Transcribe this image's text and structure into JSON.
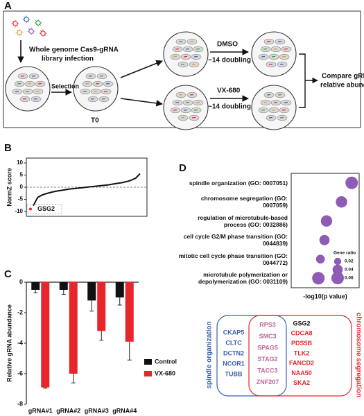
{
  "panel_labels": [
    "A",
    "B",
    "C",
    "D"
  ],
  "schematic": {
    "infection": [
      "Whole genome Cas9-gRNA",
      "library infection"
    ],
    "selection": "Selection",
    "t0": "T0",
    "treatments": [
      {
        "name": "DMSO",
        "duration": "~14 doubling"
      },
      {
        "name": "VX-680",
        "duration": "~14 doubling"
      }
    ],
    "compare": [
      "Compare gRNA",
      "relative abundance"
    ]
  },
  "chart_data": [
    {
      "type": "line",
      "y_label": "NormZ score",
      "values": [
        -7.6,
        -4.2,
        -3.2,
        -2.6,
        -2.1,
        -1.7,
        -1.4,
        -1.1,
        -0.8,
        -0.6,
        -0.4,
        -0.2,
        0,
        0.2,
        0.4,
        0.6,
        0.8,
        1.0,
        1.3,
        1.6,
        1.9,
        2.3,
        2.9,
        3.7,
        5.6
      ],
      "color": "#111111",
      "ylim": [
        -12,
        12
      ],
      "yticks": [
        -10,
        -5,
        0,
        5,
        10
      ],
      "zero_line": true,
      "highlight": {
        "label": "GSG2",
        "value": -9,
        "color": "#e8252b"
      }
    },
    {
      "type": "bar",
      "y_label": "Relative gRNA abundance",
      "categories": [
        "gRNA#1",
        "gRNA#2",
        "gRNA#3",
        "gRNA#4"
      ],
      "series": [
        {
          "name": "Control",
          "color": "#111111",
          "values": [
            -0.5,
            -0.5,
            -1.2,
            -1.0
          ],
          "errors": [
            0.2,
            0.3,
            0.7,
            0.5
          ]
        },
        {
          "name": "VX-680",
          "color": "#e8252b",
          "values": [
            -6.9,
            -6.0,
            -3.2,
            -3.9
          ],
          "errors": [
            0.05,
            0.6,
            0.6,
            1.2
          ]
        }
      ],
      "ylim": [
        -8,
        0
      ],
      "yticks": [
        0,
        -2,
        -4,
        -6,
        -8
      ]
    },
    {
      "type": "bubble",
      "x_label": "-log10(p value)",
      "categories": [
        "spindle organization (GO: 0007051)",
        "chromosome segregation (GO: 0007059)",
        "regulation of microtubule-based process (GO: 0032886)",
        "cell cycle G2/M phase transition (GO: 0044839)",
        "mitotic cell cycle phase transition (GO: 0044772)",
        "microtubule polymerization or depolymerization (GO: 0031109)"
      ],
      "values": [
        4.45,
        3.7,
        2.6,
        2.45,
        2.15,
        2.0
      ],
      "sizes": [
        0.06,
        0.05,
        0.05,
        0.04,
        0.03,
        0.06
      ],
      "xlim": [
        0,
        5
      ],
      "color": "#8e5bb5",
      "size_legend_title": "Gene ratio",
      "size_legend": [
        0.02,
        0.04,
        0.06
      ]
    }
  ],
  "venn": {
    "sets": [
      {
        "name": "spindle organization",
        "color": "#3a5fb0",
        "genes": [
          "CKAP5",
          "CLTC",
          "DCTN2",
          "NCOR1",
          "TUBB"
        ]
      },
      {
        "name": "chromosome segregation",
        "color": "#e8252b",
        "genes": [
          "GSG2",
          "CDCA8",
          "PDS5B",
          "TLK2",
          "FANCD2",
          "NAA50",
          "SKA2"
        ],
        "gene_colors": [
          "#111111",
          "#e8252b",
          "#e8252b",
          "#e8252b",
          "#e8252b",
          "#e8252b",
          "#e8252b"
        ]
      }
    ],
    "intersection": {
      "color": "#c0679a",
      "genes": [
        "RPS3",
        "SMC3",
        "SPAG5",
        "STAG2",
        "TACC3",
        "ZNF207"
      ]
    }
  }
}
